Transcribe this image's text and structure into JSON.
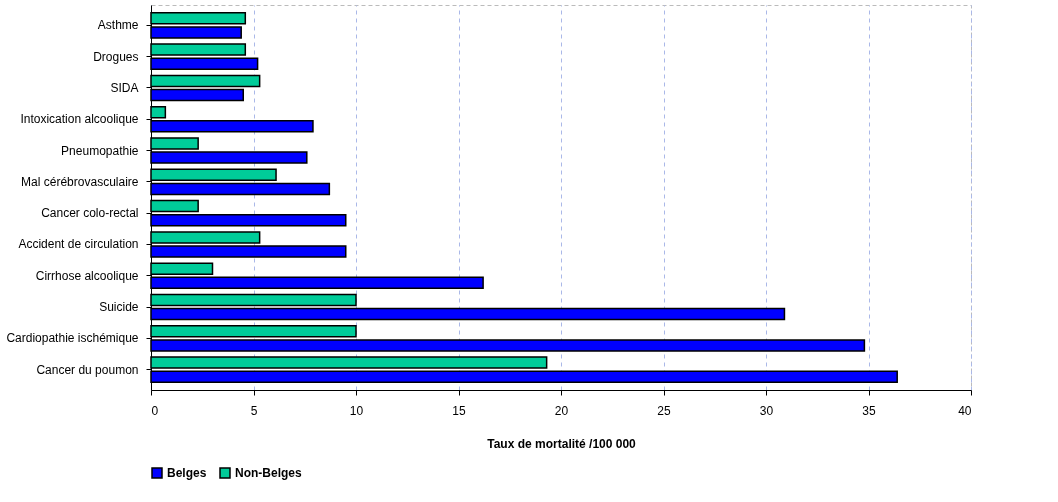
{
  "chart_data": {
    "type": "bar",
    "orientation": "horizontal",
    "xlabel": "Taux de mortalité /100 000",
    "categories": [
      "Asthme",
      "Drogues",
      "SIDA",
      "Intoxication alcoolique",
      "Pneumopathie",
      "Mal cérébrovasculaire",
      "Cancer colo-rectal",
      "Accident de circulation",
      "Cirrhose alcoolique",
      "Suicide",
      "Cardiopathie ischémique",
      "Cancer du poumon"
    ],
    "series": [
      {
        "name": "Belges",
        "color": "#0000ff",
        "values": [
          4.4,
          5.2,
          4.5,
          7.9,
          7.6,
          8.7,
          9.5,
          9.5,
          16.2,
          30.9,
          34.8,
          36.4
        ]
      },
      {
        "name": "Non-Belges",
        "color": "#00cc99",
        "values": [
          4.6,
          4.6,
          5.3,
          0.7,
          2.3,
          6.1,
          2.3,
          5.3,
          3.0,
          10.0,
          10.0,
          19.3
        ]
      }
    ],
    "xlim": [
      0,
      40
    ],
    "xticks": [
      0,
      5,
      10,
      15,
      20,
      25,
      30,
      35,
      40
    ],
    "grid": "x",
    "legend": "bottom"
  }
}
